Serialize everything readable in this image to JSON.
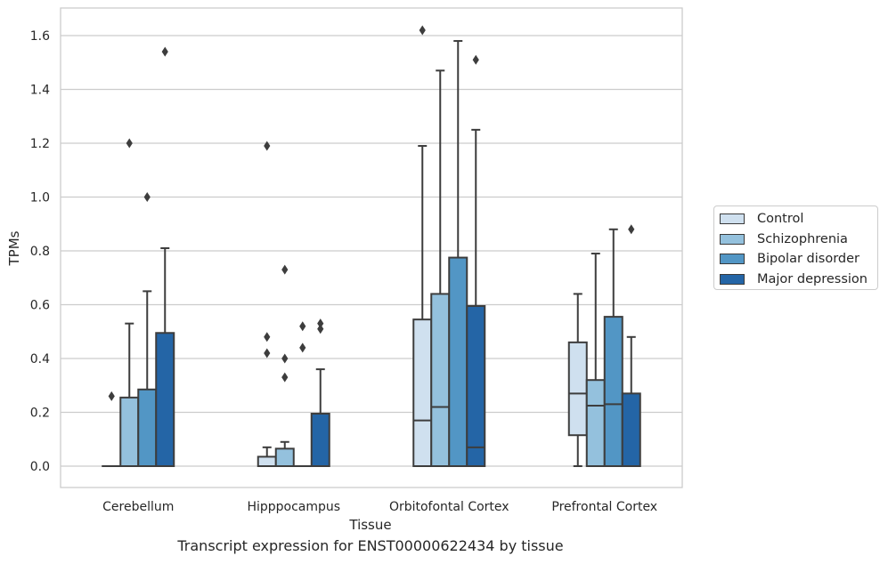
{
  "chart_data": {
    "type": "box",
    "ylabel": "TPMs",
    "xlabel": "Tissue",
    "caption": "Transcript expression for ENST00000622434 by tissue",
    "ylim": [
      -0.08,
      1.7
    ],
    "yticks": [
      "0.0",
      "0.2",
      "0.4",
      "0.6",
      "0.8",
      "1.0",
      "1.2",
      "1.4",
      "1.6"
    ],
    "grid": true,
    "legend_position": "right",
    "categories": [
      "Cerebellum",
      "Hipppocampus",
      "Orbitofontal Cortex",
      "Prefrontal Cortex"
    ],
    "series": [
      {
        "name": "Control",
        "color": "#cfe0ef",
        "boxes": [
          {
            "q1": 0,
            "median": 0,
            "q3": 0,
            "whislo": 0,
            "whishi": 0,
            "fliers": [
              0.26
            ]
          },
          {
            "q1": 0,
            "median": 0.0,
            "q3": 0.035,
            "whislo": 0,
            "whishi": 0.07,
            "fliers": [
              0.48,
              0.42,
              1.19
            ]
          },
          {
            "q1": 0,
            "median": 0.17,
            "q3": 0.545,
            "whislo": 0,
            "whishi": 1.19,
            "fliers": [
              1.62
            ]
          },
          {
            "q1": 0.115,
            "median": 0.27,
            "q3": 0.46,
            "whislo": 0,
            "whishi": 0.64,
            "fliers": []
          }
        ]
      },
      {
        "name": "Schizophrenia",
        "color": "#94c1dd",
        "boxes": [
          {
            "q1": 0,
            "median": 0,
            "q3": 0.255,
            "whislo": 0,
            "whishi": 0.53,
            "fliers": [
              1.2
            ]
          },
          {
            "q1": 0,
            "median": 0.0,
            "q3": 0.065,
            "whislo": 0,
            "whishi": 0.09,
            "fliers": [
              0.4,
              0.33,
              0.73
            ]
          },
          {
            "q1": 0,
            "median": 0.22,
            "q3": 0.64,
            "whislo": 0,
            "whishi": 1.47,
            "fliers": []
          },
          {
            "q1": 0,
            "median": 0.225,
            "q3": 0.32,
            "whislo": 0,
            "whishi": 0.79,
            "fliers": []
          }
        ]
      },
      {
        "name": "Bipolar disorder",
        "color": "#5296c5",
        "boxes": [
          {
            "q1": 0,
            "median": 0,
            "q3": 0.285,
            "whislo": 0,
            "whishi": 0.65,
            "fliers": [
              1.0
            ]
          },
          {
            "q1": 0,
            "median": 0,
            "q3": 0,
            "whislo": 0,
            "whishi": 0,
            "fliers": [
              0.52,
              0.44
            ]
          },
          {
            "q1": 0,
            "median": 0.0,
            "q3": 0.775,
            "whislo": 0,
            "whishi": 1.58,
            "fliers": []
          },
          {
            "q1": 0,
            "median": 0.23,
            "q3": 0.555,
            "whislo": 0,
            "whishi": 0.88,
            "fliers": []
          }
        ]
      },
      {
        "name": "Major depression",
        "color": "#2465a6",
        "boxes": [
          {
            "q1": 0,
            "median": 0,
            "q3": 0.495,
            "whislo": 0,
            "whishi": 0.81,
            "fliers": [
              1.54
            ]
          },
          {
            "q1": 0,
            "median": 0,
            "q3": 0.195,
            "whislo": 0,
            "whishi": 0.36,
            "fliers": [
              0.53,
              0.51
            ]
          },
          {
            "q1": 0,
            "median": 0.07,
            "q3": 0.595,
            "whislo": 0,
            "whishi": 1.25,
            "fliers": [
              1.51
            ]
          },
          {
            "q1": 0,
            "median": 0,
            "q3": 0.27,
            "whislo": 0,
            "whishi": 0.48,
            "fliers": [
              0.88
            ]
          }
        ]
      }
    ]
  }
}
